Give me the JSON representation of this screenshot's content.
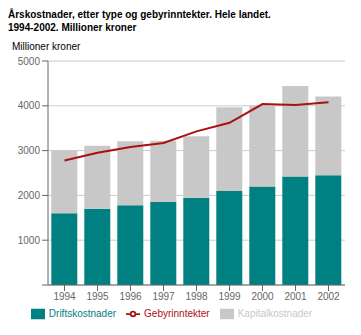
{
  "chart_data": {
    "type": "bar",
    "title": "Årskostnader, etter type og gebyrinntekter. Hele landet.",
    "subtitle": "1994-2002. Millioner kroner",
    "y_label": "Millioner kroner",
    "categories": [
      "1994",
      "1995",
      "1996",
      "1997",
      "1998",
      "1999",
      "2000",
      "2001",
      "2002"
    ],
    "series": [
      {
        "name": "Driftskostnader",
        "type": "bar",
        "color": "#008080",
        "values": [
          1600,
          1700,
          1780,
          1850,
          1950,
          2100,
          2200,
          2420,
          2450
        ]
      },
      {
        "name": "Kapitalkostnader",
        "type": "bar",
        "color": "#c8c8c8",
        "values": [
          1400,
          1410,
          1430,
          1370,
          1370,
          1870,
          1800,
          2020,
          1760
        ]
      },
      {
        "name": "Gebyrinntekter",
        "type": "line",
        "color": "#aa1111",
        "values": [
          2780,
          2950,
          3080,
          3170,
          3430,
          3620,
          4040,
          4020,
          4080
        ]
      }
    ],
    "stacked": true,
    "ylim": [
      0,
      5000
    ],
    "yticks": [
      {
        "value": 0,
        "label": null
      },
      1000,
      2000,
      3000,
      4000,
      5000
    ],
    "grid": true,
    "legend": "bottom"
  }
}
